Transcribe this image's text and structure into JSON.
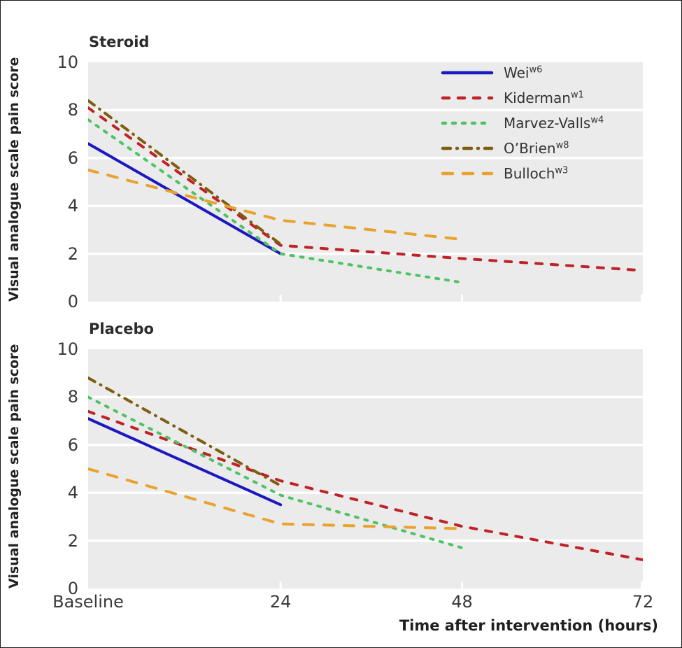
{
  "figure": {
    "y_axis_label": "Visual analogue scale pain score",
    "x_axis_label": "Time after intervention (hours)",
    "x_tick_labels": [
      "Baseline",
      "24",
      "48",
      "72"
    ],
    "colors": {
      "plot_background": "#ebebeb",
      "gridline": "#ffffff",
      "title_text": "#2b2b2b",
      "tick_text": "#3a3a3a",
      "wei_blue": "#1b18c0",
      "kiderman_red": "#bf2327",
      "marvez_valls_green": "#4fc363",
      "obrien_brown": "#7d5d10",
      "bulloch_orange": "#e8a32f"
    }
  },
  "legend": {
    "entries": [
      {
        "label": "Wei",
        "superscript": "w6"
      },
      {
        "label": "Kiderman",
        "superscript": "w1"
      },
      {
        "label": "Marvez-Valls",
        "superscript": "w4"
      },
      {
        "label": "O’Brien",
        "superscript": "w8"
      },
      {
        "label": "Bulloch",
        "superscript": "w3"
      }
    ]
  },
  "chart_data": [
    {
      "type": "line",
      "title": "Steroid",
      "ylabel": "Visual analogue scale pain score",
      "xlabel": "Time after intervention (hours)",
      "ylim": [
        0,
        10
      ],
      "yticks": [
        0,
        2,
        4,
        6,
        8,
        10
      ],
      "x_hours": [
        0,
        24,
        48,
        72
      ],
      "x_tick_labels": [
        "Baseline",
        "24",
        "48",
        "72"
      ],
      "grid": "horizontal-white-on-gray",
      "legend_position": "top-right",
      "series": [
        {
          "name": "Wei",
          "ref": "w6",
          "color": "#1b18c0",
          "dash": "solid",
          "x_hours": [
            0,
            24
          ],
          "values": [
            6.6,
            2.0
          ]
        },
        {
          "name": "Kiderman",
          "ref": "w1",
          "color": "#bf2327",
          "dash": "dashed",
          "x_hours": [
            0,
            24,
            48,
            72
          ],
          "values": [
            8.1,
            2.35,
            1.8,
            1.3
          ]
        },
        {
          "name": "Marvez-Valls",
          "ref": "w4",
          "color": "#4fc363",
          "dash": "short-dash",
          "x_hours": [
            0,
            24,
            48
          ],
          "values": [
            7.6,
            2.0,
            0.8
          ]
        },
        {
          "name": "O’Brien",
          "ref": "w8",
          "color": "#7d5d10",
          "dash": "dash-dot",
          "x_hours": [
            0,
            24
          ],
          "values": [
            8.4,
            2.4
          ]
        },
        {
          "name": "Bulloch",
          "ref": "w3",
          "color": "#e8a32f",
          "dash": "long-dash",
          "x_hours": [
            0,
            24,
            48
          ],
          "values": [
            5.5,
            3.4,
            2.6
          ]
        }
      ]
    },
    {
      "type": "line",
      "title": "Placebo",
      "ylabel": "Visual analogue scale pain score",
      "xlabel": "Time after intervention (hours)",
      "ylim": [
        0,
        10
      ],
      "yticks": [
        0,
        2,
        4,
        6,
        8,
        10
      ],
      "x_hours": [
        0,
        24,
        48,
        72
      ],
      "x_tick_labels": [
        "Baseline",
        "24",
        "48",
        "72"
      ],
      "grid": "horizontal-white-on-gray",
      "legend_position": "none",
      "series": [
        {
          "name": "Wei",
          "ref": "w6",
          "color": "#1b18c0",
          "dash": "solid",
          "x_hours": [
            0,
            24
          ],
          "values": [
            7.1,
            3.5
          ]
        },
        {
          "name": "Kiderman",
          "ref": "w1",
          "color": "#bf2327",
          "dash": "dashed",
          "x_hours": [
            0,
            24,
            48,
            72
          ],
          "values": [
            7.4,
            4.5,
            2.6,
            1.2
          ]
        },
        {
          "name": "Marvez-Valls",
          "ref": "w4",
          "color": "#4fc363",
          "dash": "short-dash",
          "x_hours": [
            0,
            24,
            48
          ],
          "values": [
            8.0,
            3.9,
            1.7
          ]
        },
        {
          "name": "O’Brien",
          "ref": "w8",
          "color": "#7d5d10",
          "dash": "dash-dot",
          "x_hours": [
            0,
            24
          ],
          "values": [
            8.8,
            4.3
          ]
        },
        {
          "name": "Bulloch",
          "ref": "w3",
          "color": "#e8a32f",
          "dash": "long-dash",
          "x_hours": [
            0,
            24,
            48
          ],
          "values": [
            5.0,
            2.7,
            2.5
          ]
        }
      ]
    }
  ]
}
